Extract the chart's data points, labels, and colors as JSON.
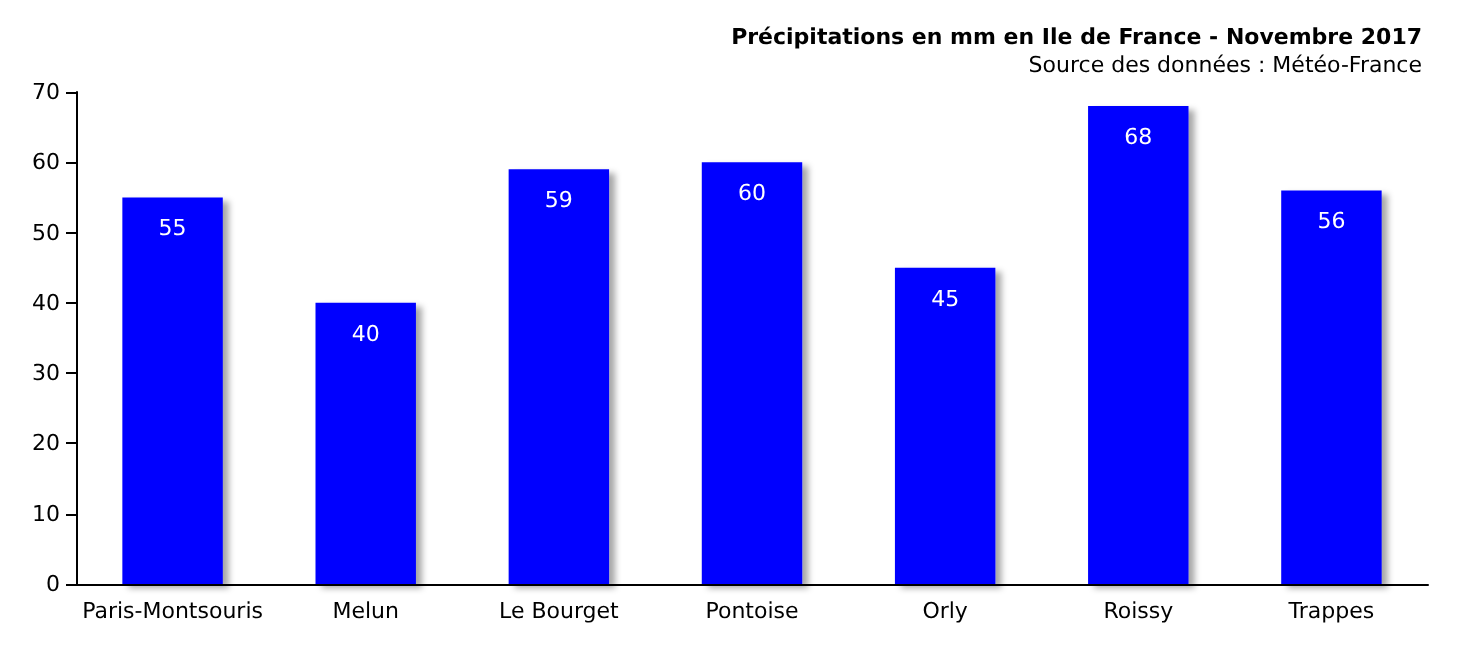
{
  "chart_data": {
    "type": "bar",
    "title": "Précipitations en mm en Ile de France - Novembre 2017",
    "subtitle": "Source des données : Météo-France",
    "categories": [
      "Paris-Montsouris",
      "Melun",
      "Le Bourget",
      "Pontoise",
      "Orly",
      "Roissy",
      "Trappes"
    ],
    "values": [
      55,
      40,
      59,
      60,
      45,
      68,
      56
    ],
    "color": "#0000ff",
    "data_labels": true,
    "ylim": [
      0,
      70
    ],
    "yticks": [
      0,
      10,
      20,
      30,
      40,
      50,
      60,
      70
    ]
  }
}
